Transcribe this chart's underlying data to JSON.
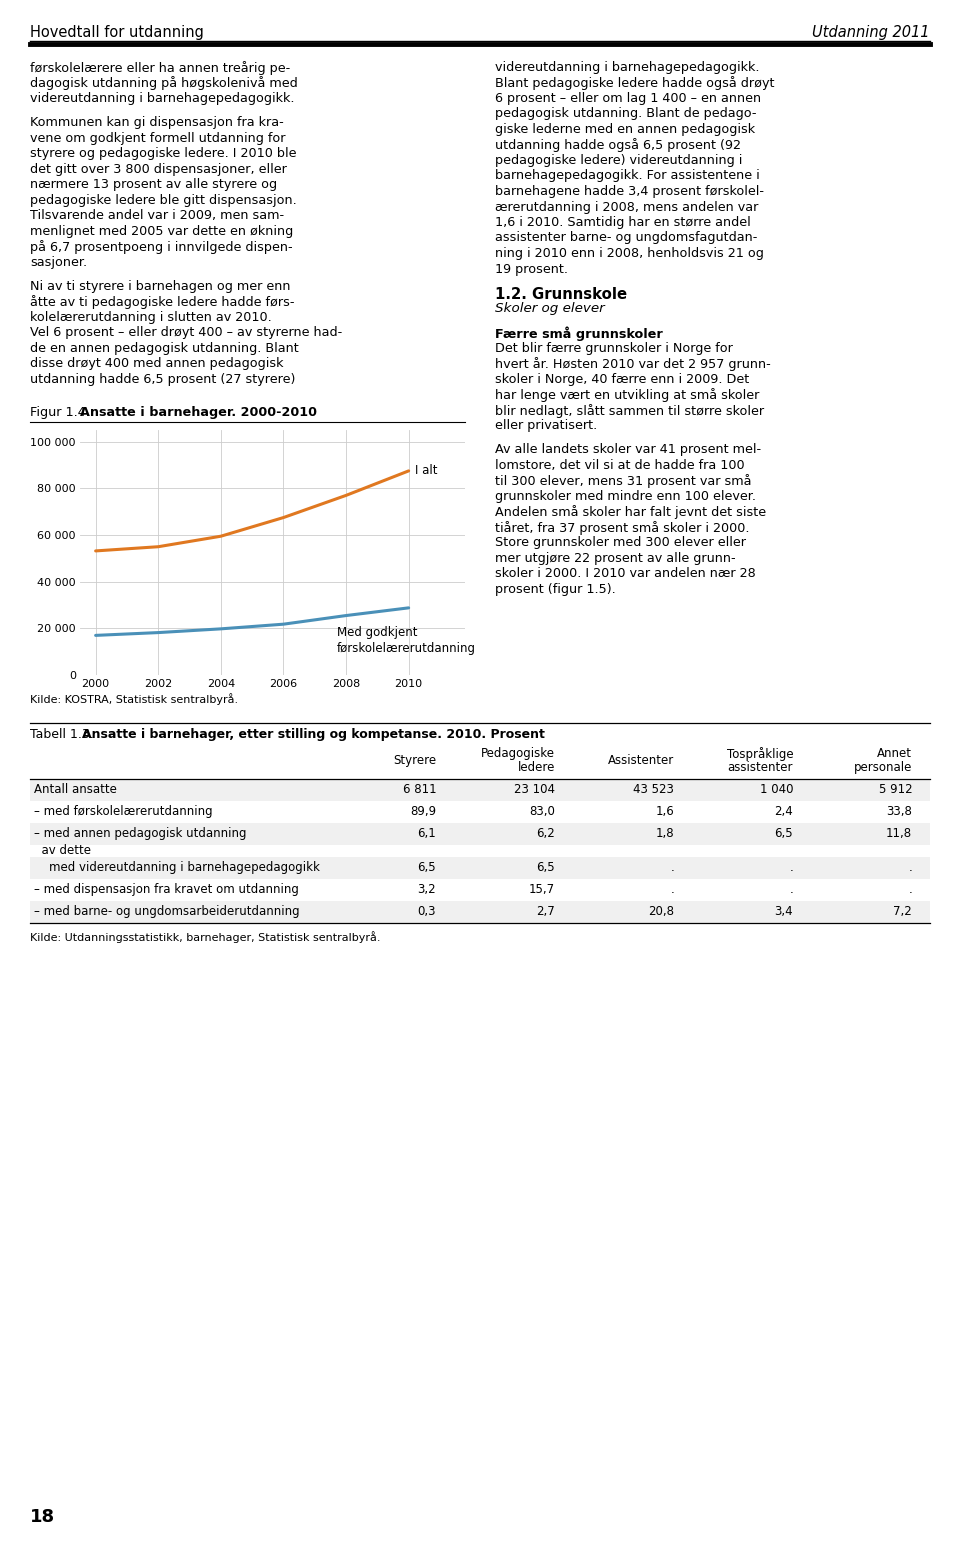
{
  "header_left": "Hovedtall for utdanning",
  "header_right": "Utdanning 2011",
  "page_number": "18",
  "col1_text": [
    "førskolelærere eller ha annen treårig pe-",
    "dagogisk utdanning på høgskolenivå med",
    "videreutdanning i barnehagepedagogikk.",
    "",
    "Kommunen kan gi dispensasjon fra kra-",
    "vene om godkjent formell utdanning for",
    "styrere og pedagogiske ledere. I 2010 ble",
    "det gitt over 3 800 dispensasjoner, eller",
    "nærmere 13 prosent av alle styrere og",
    "pedagogiske ledere ble gitt dispensasjon.",
    "Tilsvarende andel var i 2009, men sam-",
    "menlignet med 2005 var dette en økning",
    "på 6,7 prosentpoeng i innvilgede dispen-",
    "sasjoner.",
    "",
    "Ni av ti styrere i barnehagen og mer enn",
    "åtte av ti pedagogiske ledere hadde førs-",
    "kolelærerutdanning i slutten av 2010.",
    "Vel 6 prosent – eller drøyt 400 – av styrerne had-",
    "de en annen pedagogisk utdanning. Blant",
    "disse drøyt 400 med annen pedagogisk",
    "utdanning hadde 6,5 prosent (27 styrere)"
  ],
  "col2_text": [
    "videreutdanning i barnehagepedagogikk.",
    "Blant pedagogiske ledere hadde også drøyt",
    "6 prosent – eller om lag 1 400 – en annen",
    "pedagogisk utdanning. Blant de pedago-",
    "giske lederne med en annen pedagogisk",
    "utdanning hadde også 6,5 prosent (92",
    "pedagogiske ledere) videreutdanning i",
    "barnehagepedagogikk. For assistentene i",
    "barnehagene hadde 3,4 prosent førskolel-",
    "ærerutdanning i 2008, mens andelen var",
    "1,6 i 2010. Samtidig har en større andel",
    "assistenter barne- og ungdomsfagutdan-",
    "ning i 2010 enn i 2008, henholdsvis 21 og",
    "19 prosent.",
    "",
    "1.2. Grunnskole",
    "Skoler og elever",
    "",
    "Færre små grunnskoler",
    "Det blir færre grunnskoler i Norge for",
    "hvert år. Høsten 2010 var det 2 957 grunn-",
    "skoler i Norge, 40 færre enn i 2009. Det",
    "har lenge vært en utvikling at små skoler",
    "blir nedlagt, slått sammen til større skoler",
    "eller privatisert.",
    "",
    "Av alle landets skoler var 41 prosent mel-",
    "lomstore, det vil si at de hadde fra 100",
    "til 300 elever, mens 31 prosent var små",
    "grunnskoler med mindre enn 100 elever.",
    "Andelen små skoler har falt jevnt det siste",
    "tiåret, fra 37 prosent små skoler i 2000.",
    "Store grunnskoler med 300 elever eller",
    "mer utgjøre 22 prosent av alle grunn-",
    "skoler i 2000. I 2010 var andelen nær 28",
    "prosent (figur 1.5)."
  ],
  "fig_title_prefix": "Figur 1.4.",
  "fig_title_bold": "Ansatte i barnehager. 2000-2010",
  "fig_source": "Kilde: KOSTRA, Statistisk sentralbyrå.",
  "chart_years": [
    2000,
    2002,
    2004,
    2006,
    2008,
    2010
  ],
  "chart_total": [
    53200,
    55000,
    59500,
    67500,
    77000,
    87500
  ],
  "chart_approved": [
    17000,
    18200,
    19800,
    21800,
    25500,
    28800
  ],
  "line_total_color": "#E07820",
  "line_approved_color": "#4A90B8",
  "label_total": "I alt",
  "label_approved": "Med godkjent\nførskolelærerutdanning",
  "ytick_vals": [
    0,
    20000,
    40000,
    60000,
    80000,
    100000
  ],
  "ytick_labels": [
    "0",
    "20 000",
    "40 000",
    "60 000",
    "80 000",
    "100 000"
  ],
  "ylim": [
    0,
    105000
  ],
  "table_title_prefix": "Tabell 1.3.",
  "table_title_bold": "Ansatte i barnehager, etter stilling og kompetanse. 2010. Prosent",
  "table_col_headers": [
    "Styrere",
    "Pedagogiske\nledere",
    "Assistenter",
    "Tospråklige\nassistenter",
    "Annet\npersonale"
  ],
  "table_row_labels": [
    "Antall ansatte",
    "– med førskolelærerutdanning",
    "– med annen pedagogisk utdanning",
    "  av dette",
    "    med videreutdanning i barnehagepedagogikk",
    "– med dispensasjon fra kravet om utdanning",
    "– med barne- og ungdomsarbeiderutdanning"
  ],
  "table_data": [
    [
      "6 811",
      "23 104",
      "43 523",
      "1 040",
      "5 912"
    ],
    [
      "89,9",
      "83,0",
      "1,6",
      "2,4",
      "33,8"
    ],
    [
      "6,1",
      "6,2",
      "1,8",
      "6,5",
      "11,8"
    ],
    [
      "",
      "",
      "",
      "",
      ""
    ],
    [
      "6,5",
      "6,5",
      ".",
      ".",
      "."
    ],
    [
      "3,2",
      "15,7",
      ".",
      ".",
      "."
    ],
    [
      "0,3",
      "2,7",
      "20,8",
      "3,4",
      "7,2"
    ]
  ],
  "table_source": "Kilde: Utdanningsstatistikk, barnehager, Statistisk sentralbyrå.",
  "bg_color_even": "#f0f0f0",
  "bg_color_odd": "#ffffff"
}
